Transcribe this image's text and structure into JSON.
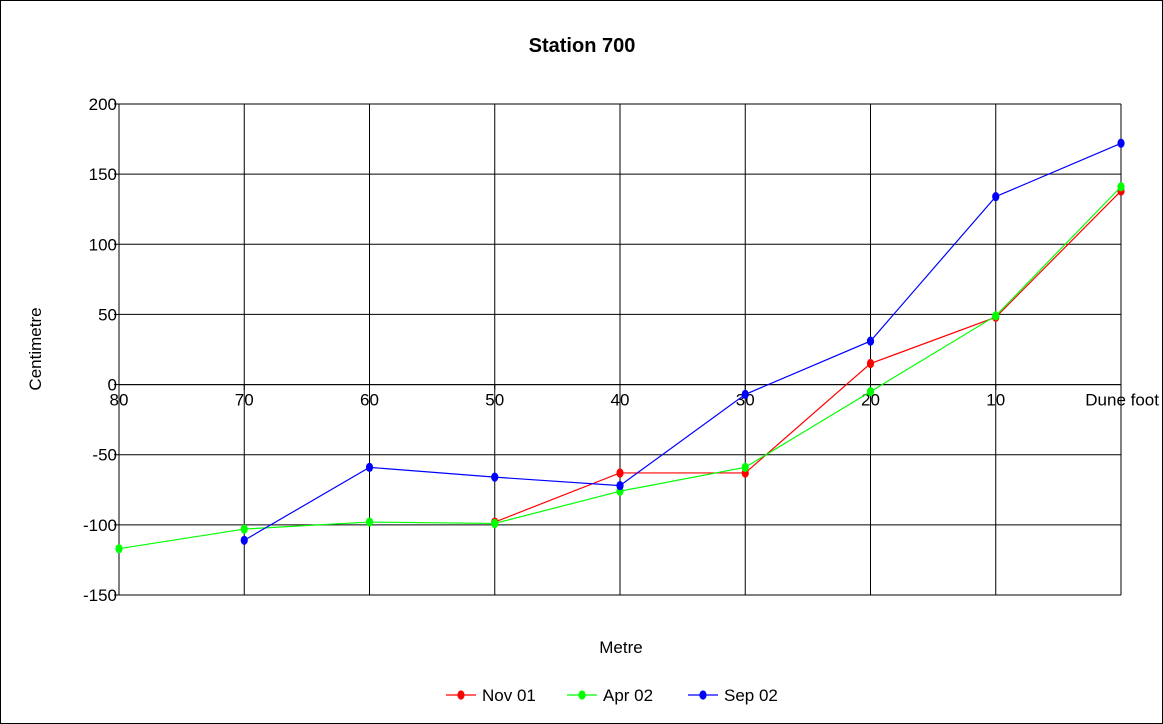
{
  "chart_data": {
    "type": "line",
    "title": "Station 700",
    "xlabel": "Metre",
    "ylabel": "Centimetre",
    "categories": [
      "80",
      "70",
      "60",
      "50",
      "40",
      "30",
      "20",
      "10",
      "Dune foot"
    ],
    "ylim": [
      -150,
      200
    ],
    "yticks": [
      200,
      150,
      100,
      50,
      0,
      -50,
      -100,
      -150
    ],
    "grid": true,
    "legend_position": "bottom",
    "series": [
      {
        "name": "Nov 01",
        "color": "#ff0000",
        "values": [
          null,
          null,
          null,
          -98,
          -63,
          -63,
          15,
          48,
          138
        ]
      },
      {
        "name": "Apr 02",
        "color": "#00ff00",
        "values": [
          -117,
          -103,
          -98,
          -99,
          -76,
          -59,
          -5,
          49,
          141
        ]
      },
      {
        "name": "Sep 02",
        "color": "#0000ff",
        "values": [
          null,
          -111,
          -59,
          -66,
          -72,
          -7,
          31,
          134,
          172
        ]
      }
    ]
  }
}
